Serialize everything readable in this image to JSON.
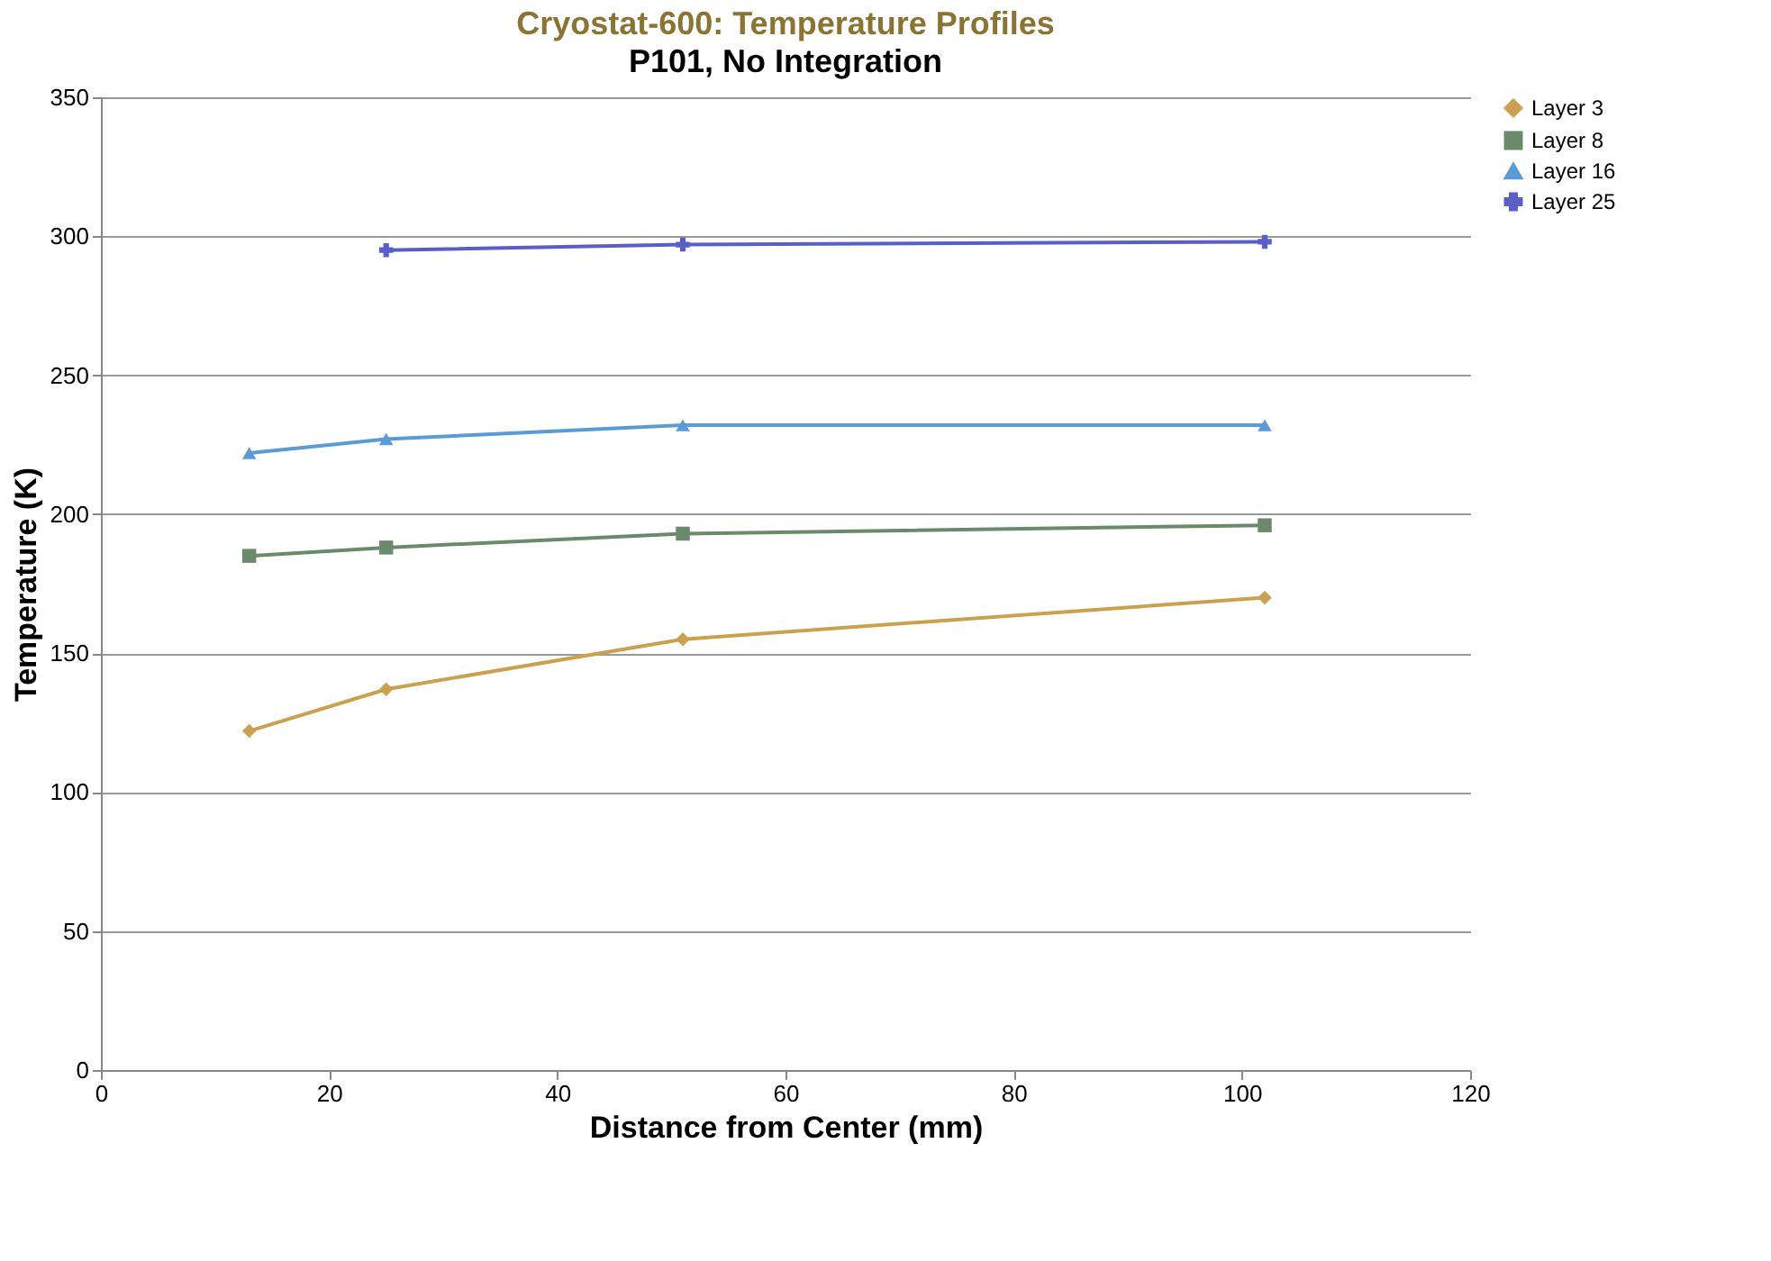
{
  "chart_data": {
    "type": "line",
    "title": "Cryostat-600:  Temperature Profiles",
    "subtitle": "P101, No Integration",
    "xlabel": "Distance from Center (mm)",
    "ylabel": "Temperature (K)",
    "xlim": [
      0,
      120
    ],
    "xticks": [
      0,
      20,
      40,
      60,
      80,
      100,
      120
    ],
    "ylim": [
      0,
      350
    ],
    "yticks": [
      0,
      50,
      100,
      150,
      200,
      250,
      300,
      350
    ],
    "grid": "y",
    "legend": "right",
    "series": [
      {
        "name": "Layer 3",
        "color": "#c9a14f",
        "marker": "diamond",
        "x": [
          13,
          25,
          51,
          102
        ],
        "values": [
          122,
          137,
          155,
          170
        ]
      },
      {
        "name": "Layer 8",
        "color": "#6b8a6b",
        "marker": "square",
        "x": [
          13,
          25,
          51,
          102
        ],
        "values": [
          185,
          188,
          193,
          196
        ]
      },
      {
        "name": "Layer 16",
        "color": "#5b9bd5",
        "marker": "triangle",
        "x": [
          13,
          25,
          51,
          102
        ],
        "values": [
          222,
          227,
          232,
          232
        ]
      },
      {
        "name": "Layer 25",
        "color": "#5a5ec8",
        "marker": "cross",
        "x": [
          25,
          51,
          102
        ],
        "values": [
          295,
          297,
          298
        ]
      }
    ]
  }
}
